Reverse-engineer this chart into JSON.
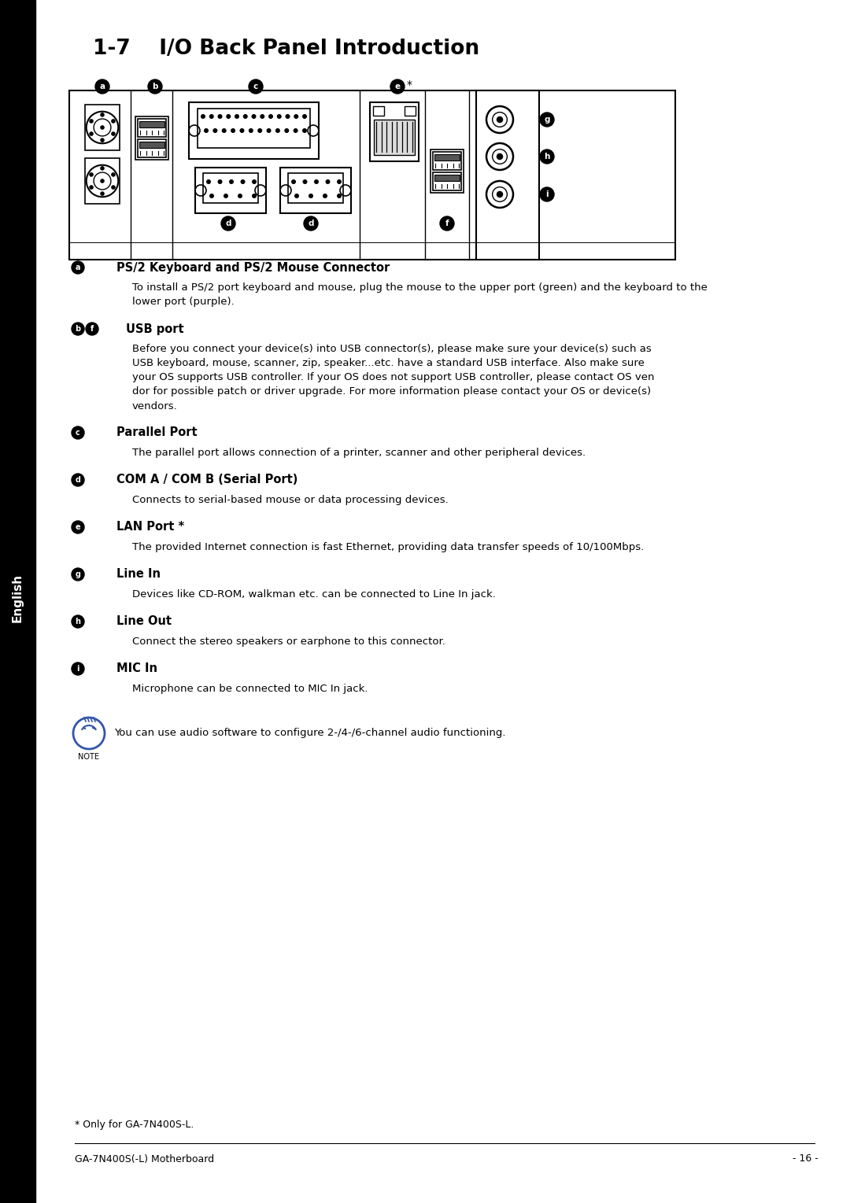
{
  "page_title": "1-7    I/O Back Panel Introduction",
  "sidebar_text": "English",
  "page_bg": "#ffffff",
  "sections": [
    {
      "label_char": "a",
      "heading": "PS/2 Keyboard and PS/2 Mouse Connector",
      "body_lines": [
        "To install a PS/2 port keyboard and mouse, plug the mouse to the upper port (green) and the keyboard to the",
        "lower port (purple)."
      ]
    },
    {
      "label_char": "bf",
      "heading": "USB port",
      "body_lines": [
        "Before you connect your device(s) into USB connector(s), please make sure your device(s) such as",
        "USB keyboard, mouse, scanner, zip, speaker...etc. have a standard USB interface. Also make sure",
        "your OS supports USB controller. If your OS does not support USB controller, please contact OS ven",
        "dor for possible patch or driver upgrade. For more information please contact your OS or device(s)",
        "vendors."
      ]
    },
    {
      "label_char": "c",
      "heading": "Parallel Port",
      "body_lines": [
        "The parallel port allows connection of a printer, scanner and other peripheral devices."
      ]
    },
    {
      "label_char": "d",
      "heading": "COM A / COM B (Serial Port)",
      "body_lines": [
        "Connects to serial-based mouse or data processing devices."
      ]
    },
    {
      "label_char": "e",
      "heading": "LAN Port *",
      "body_lines": [
        "The provided Internet connection is fast Ethernet, providing data transfer speeds of 10/100Mbps."
      ]
    },
    {
      "label_char": "g",
      "heading": "Line In",
      "body_lines": [
        "Devices like CD-ROM, walkman etc. can be connected to Line In jack."
      ]
    },
    {
      "label_char": "h",
      "heading": "Line Out",
      "body_lines": [
        "Connect the stereo speakers or earphone to this connector."
      ]
    },
    {
      "label_char": "i",
      "heading": "MIC In",
      "body_lines": [
        "Microphone can be connected to MIC In jack."
      ]
    }
  ],
  "note_text": "You can use audio software to configure 2-/4-/6-channel audio functioning.",
  "footnote": "* Only for GA-7N400S-L.",
  "footer_left": "GA-7N400S(-L) Motherboard",
  "footer_right": "- 16 -"
}
